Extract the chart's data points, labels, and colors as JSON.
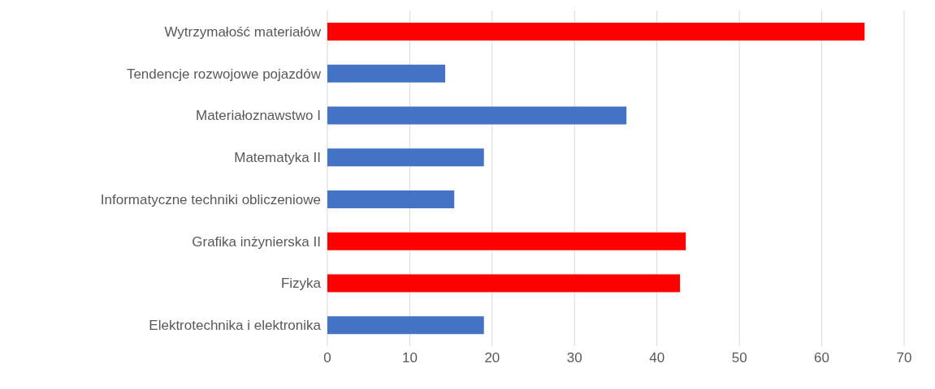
{
  "chart_data": {
    "type": "bar",
    "orientation": "horizontal",
    "categories": [
      "Wytrzymałość materiałów",
      "Tendencje rozwojowe pojazdów",
      "Materiałoznawstwo I",
      "Matematyka II",
      "Informatyczne techniki obliczeniowe",
      "Grafika inżynierska II",
      "Fizyka",
      "Elektrotechnika i elektronika"
    ],
    "values": [
      65.2,
      14.3,
      36.3,
      19.0,
      15.4,
      43.5,
      42.8,
      19.0
    ],
    "colors": [
      "#ff0000",
      "#4472c4",
      "#4472c4",
      "#4472c4",
      "#4472c4",
      "#ff0000",
      "#ff0000",
      "#4472c4"
    ],
    "xlim": [
      0,
      70
    ],
    "xticks": [
      0,
      10,
      20,
      30,
      40,
      50,
      60,
      70
    ],
    "grid": "x"
  }
}
